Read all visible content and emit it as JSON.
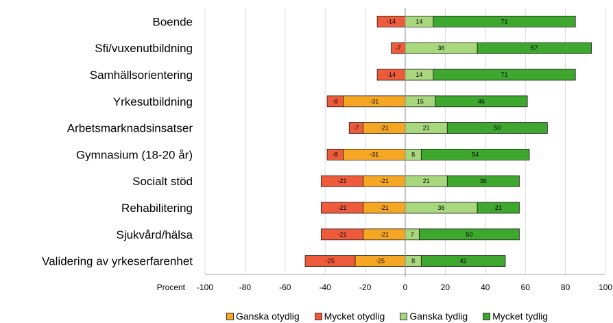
{
  "chart_data": {
    "type": "bar",
    "orientation": "horizontal",
    "stacked": "diverging",
    "categories": [
      "Boende",
      "Sfi/vuxenutbildning",
      "Samhällsorientering",
      "Yrkesutbildning",
      "Arbetsmarknadsinsatser",
      "Gymnasium (18-20 år)",
      "Socialt stöd",
      "Rehabilitering",
      "Sjukvård/hälsa",
      "Validering av yrkeserfarenhet"
    ],
    "series": [
      {
        "name": "Ganska otydlig",
        "color": "#F5A623",
        "values": [
          0,
          0,
          0,
          -31,
          -21,
          -31,
          -21,
          -21,
          -21,
          -25
        ]
      },
      {
        "name": "Mycket otydlig",
        "color": "#EE5B3B",
        "values": [
          -14,
          -7,
          -14,
          -8,
          -7,
          -8,
          -21,
          -21,
          -21,
          -25
        ]
      },
      {
        "name": "Ganska tydlig",
        "color": "#A9D77E",
        "values": [
          14,
          36,
          14,
          15,
          21,
          8,
          21,
          36,
          7,
          8
        ]
      },
      {
        "name": "Mycket tydlig",
        "color": "#3EA72D",
        "values": [
          71,
          57,
          71,
          46,
          50,
          54,
          36,
          21,
          50,
          42
        ]
      }
    ],
    "xlabel": "Procent",
    "xlim": [
      -100,
      100
    ],
    "xticks": [
      -100,
      -80,
      -60,
      -40,
      -20,
      0,
      20,
      40,
      60,
      80,
      100
    ],
    "grid": "vertical",
    "legend_position": "bottom"
  }
}
